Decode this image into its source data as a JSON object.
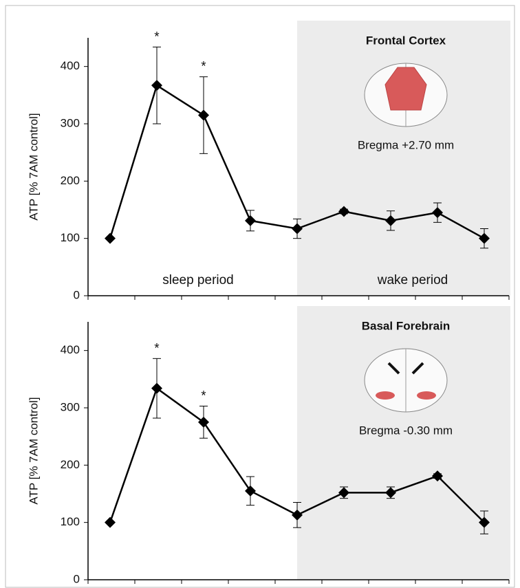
{
  "chart_data": [
    {
      "type": "line",
      "ylabel": "ATP [% 7AM control]",
      "categories": [
        null,
        null,
        null,
        null,
        null,
        null,
        null,
        null,
        null
      ],
      "series": [
        {
          "color": "#000000",
          "values": [
            100,
            367,
            315,
            131,
            117,
            147,
            131,
            145,
            100
          ],
          "errors": [
            0,
            67,
            67,
            18,
            17,
            4,
            17,
            17,
            17
          ]
        }
      ],
      "ylim": [
        0,
        450
      ],
      "yticks": [
        0,
        100,
        200,
        300,
        400
      ],
      "significance_marker": "*",
      "significant": [
        1,
        2
      ],
      "shade": {
        "start": 4,
        "color": "#ececec"
      },
      "period_labels": [
        "sleep period",
        "wake period"
      ],
      "region": "Frontal Cortex",
      "bregma": "Bregma +2.70 mm"
    },
    {
      "type": "line",
      "ylabel": "ATP [% 7AM control]",
      "categories": [
        null,
        null,
        null,
        null,
        null,
        null,
        null,
        null,
        null
      ],
      "series": [
        {
          "color": "#000000",
          "values": [
            100,
            334,
            275,
            155,
            113,
            152,
            152,
            181,
            100
          ],
          "errors": [
            0,
            52,
            28,
            25,
            22,
            10,
            10,
            4,
            20
          ]
        }
      ],
      "ylim": [
        0,
        450
      ],
      "yticks": [
        0,
        100,
        200,
        300,
        400
      ],
      "significance_marker": "*",
      "significant": [
        1,
        2
      ],
      "shade": {
        "start": 4,
        "color": "#ececec"
      },
      "region": "Basal Forebrain",
      "bregma": "Bregma -0.30 mm"
    }
  ]
}
